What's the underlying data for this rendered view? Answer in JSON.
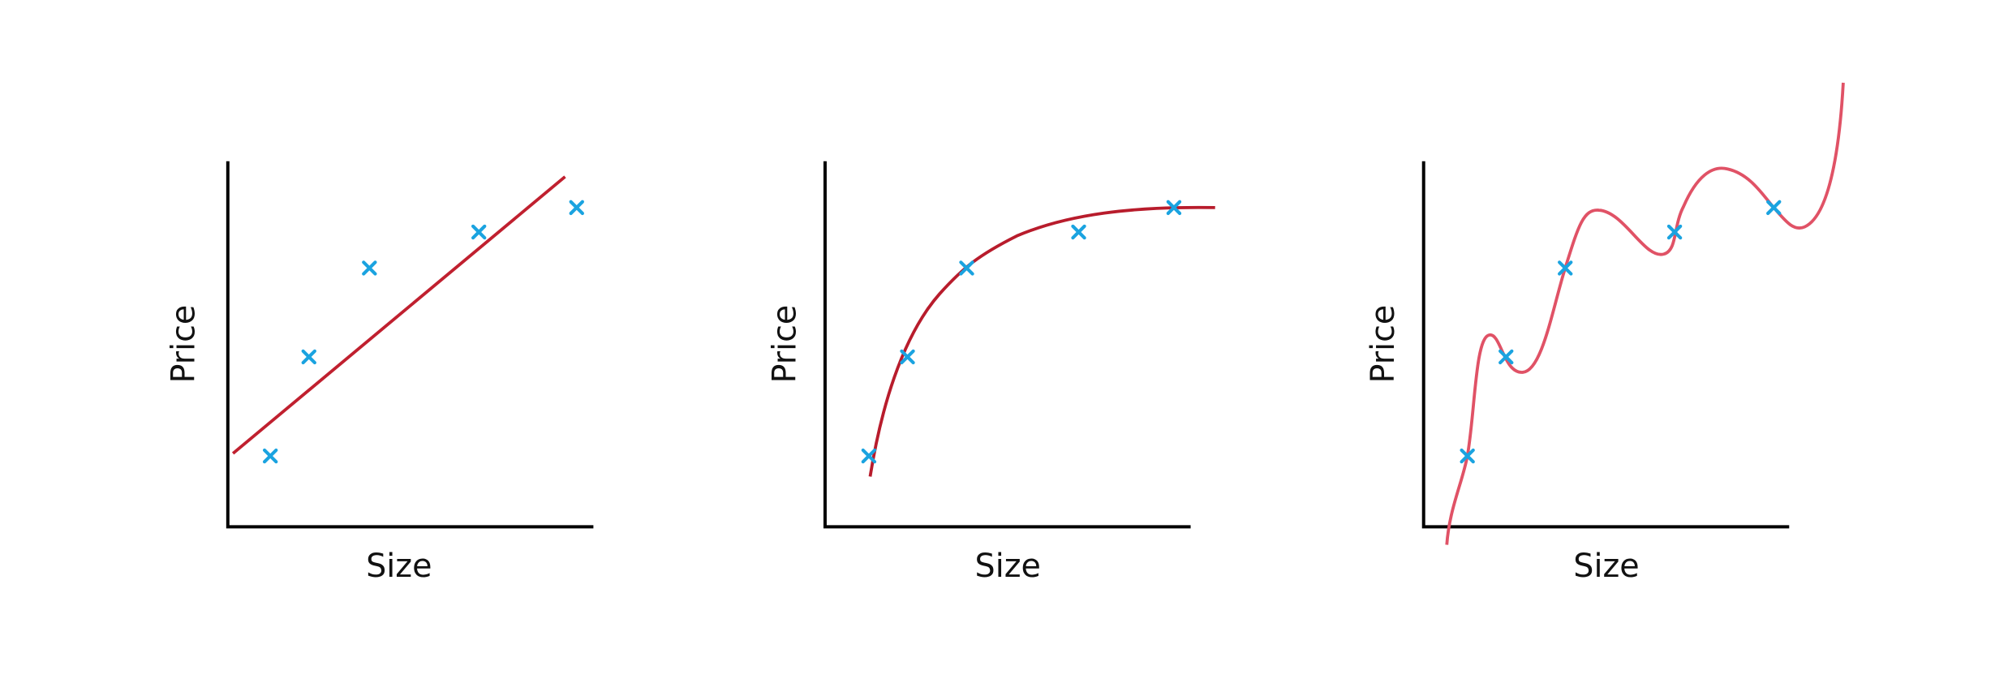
{
  "panels": [
    {
      "x_label": "Size",
      "y_label": "Price"
    },
    {
      "x_label": "Size",
      "y_label": "Price"
    },
    {
      "x_label": "Size",
      "y_label": "Price"
    }
  ]
}
